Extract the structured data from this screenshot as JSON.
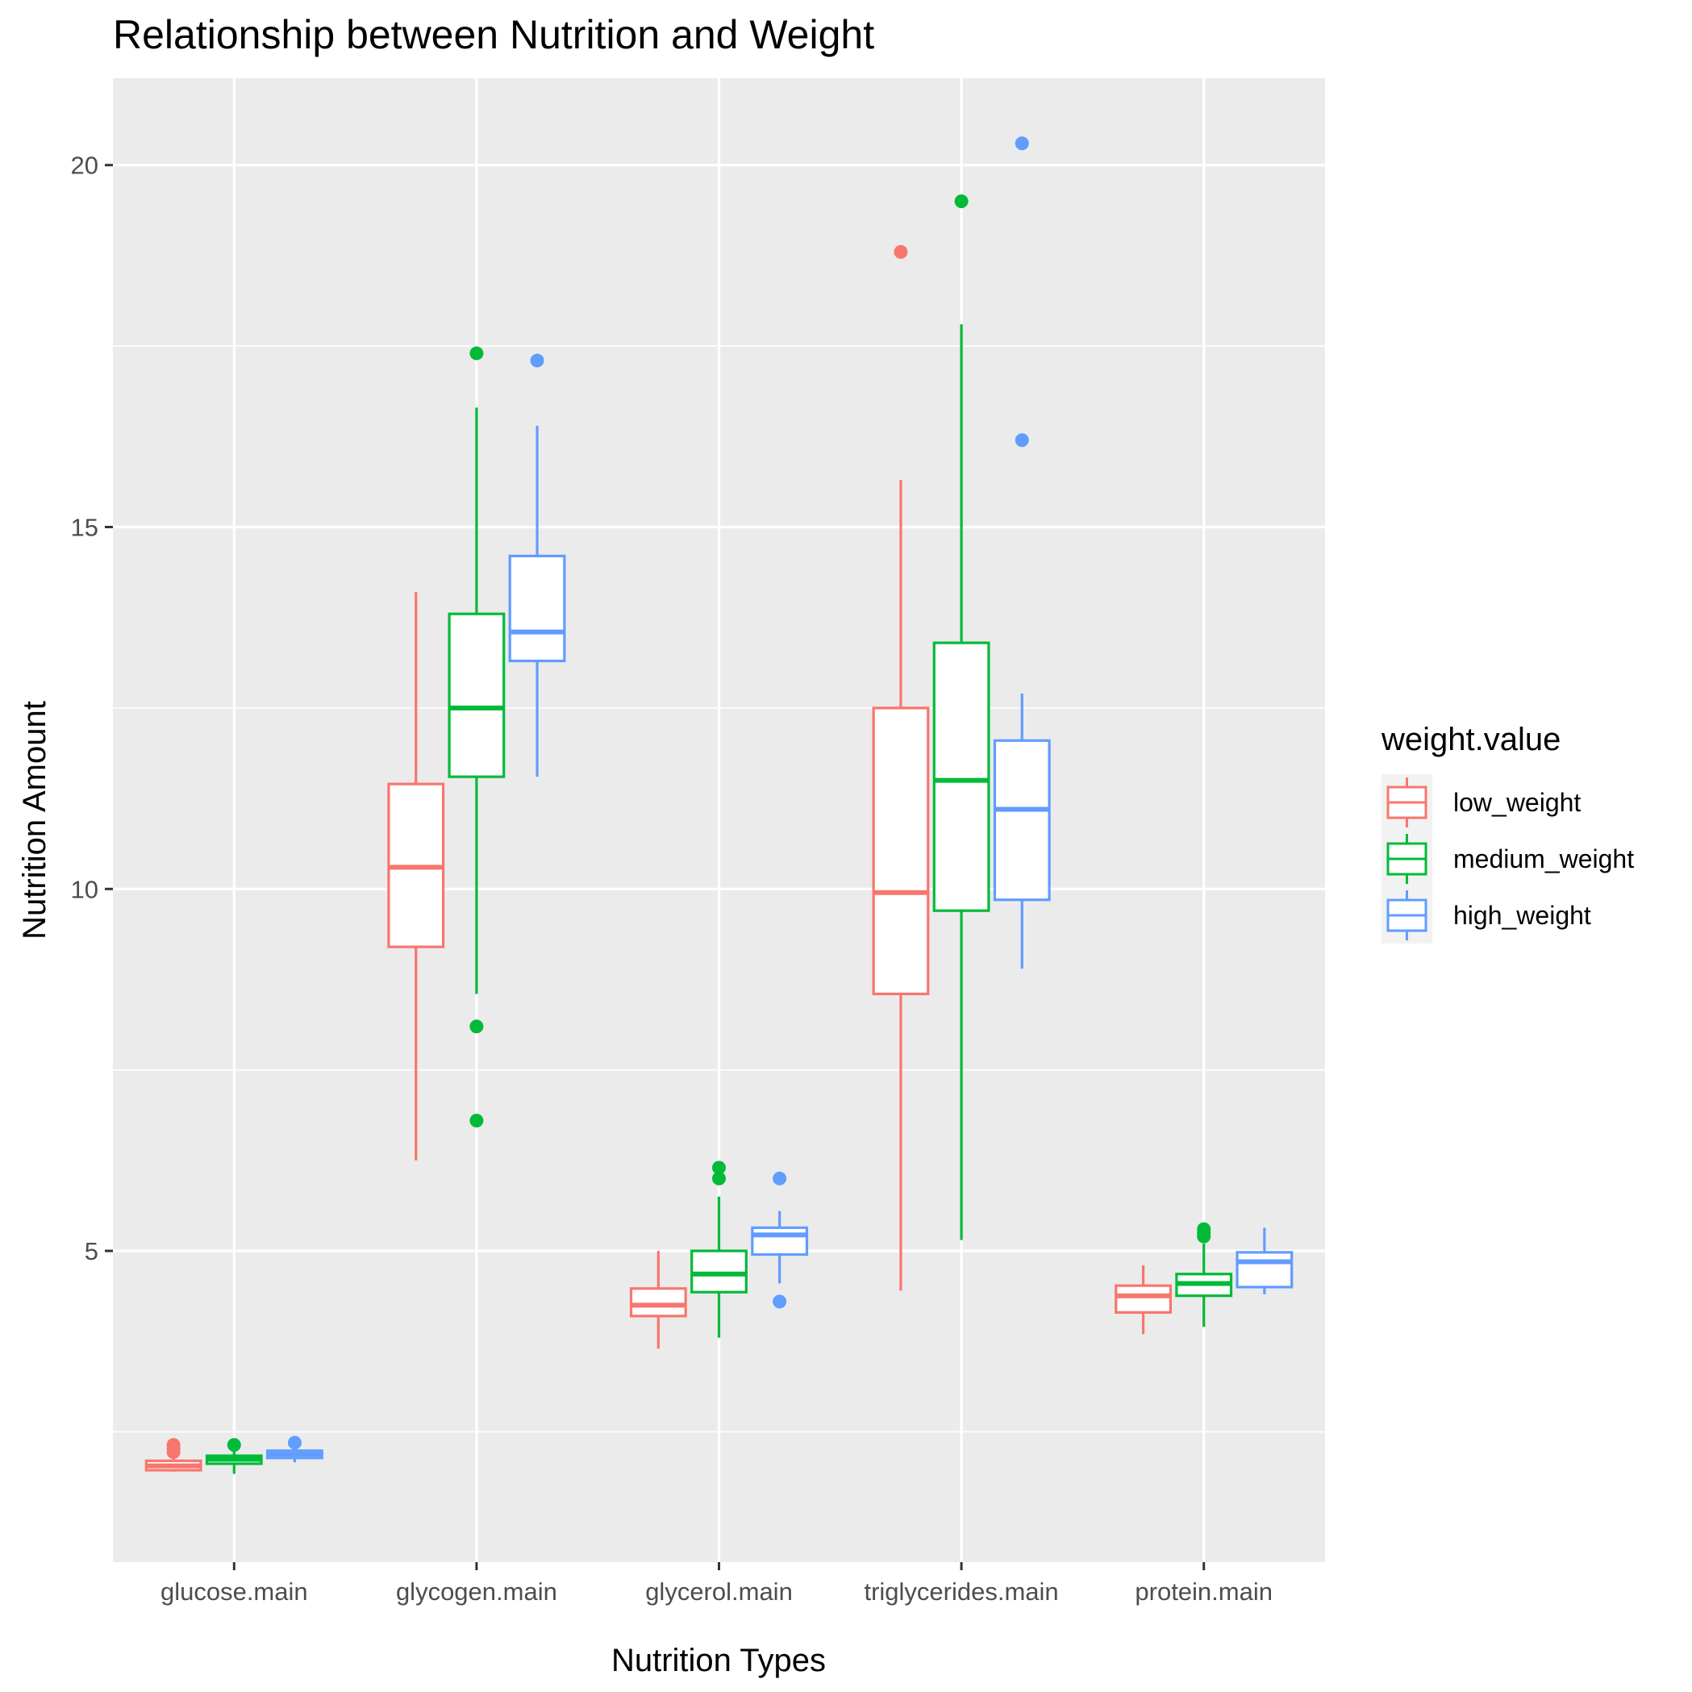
{
  "chart_data": {
    "type": "boxplot",
    "title": "Relationship between Nutrition and Weight",
    "xlabel": "Nutrition Types",
    "ylabel": "Nutrition Amount",
    "categories": [
      "glucose.main",
      "glycogen.main",
      "glycerol.main",
      "triglycerides.main",
      "protein.main"
    ],
    "y_ticks": [
      5,
      10,
      15,
      20
    ],
    "ylim": [
      0.7,
      21.2
    ],
    "grid": true,
    "legend": {
      "title": "weight.value",
      "position": "right"
    },
    "series": [
      {
        "name": "low_weight",
        "color": "#F8766D",
        "boxes": [
          {
            "whisker_low": 1.95,
            "q1": 1.97,
            "median": 2.03,
            "q3": 2.1,
            "whisker_high": 2.15,
            "outliers": [
              2.22,
              2.27,
              2.32
            ]
          },
          {
            "whisker_low": 6.25,
            "q1": 9.2,
            "median": 10.3,
            "q3": 11.45,
            "whisker_high": 14.1,
            "outliers": []
          },
          {
            "whisker_low": 3.65,
            "q1": 4.1,
            "median": 4.25,
            "q3": 4.48,
            "whisker_high": 5.0,
            "outliers": []
          },
          {
            "whisker_low": 4.45,
            "q1": 8.55,
            "median": 9.95,
            "q3": 12.5,
            "whisker_high": 15.65,
            "outliers": [
              18.8
            ]
          },
          {
            "whisker_low": 3.85,
            "q1": 4.15,
            "median": 4.38,
            "q3": 4.52,
            "whisker_high": 4.8,
            "outliers": []
          }
        ]
      },
      {
        "name": "medium_weight",
        "color": "#00BA38",
        "boxes": [
          {
            "whisker_low": 1.92,
            "q1": 2.06,
            "median": 2.12,
            "q3": 2.17,
            "whisker_high": 2.25,
            "outliers": [
              2.32
            ]
          },
          {
            "whisker_low": 8.55,
            "q1": 11.55,
            "median": 12.5,
            "q3": 13.8,
            "whisker_high": 16.65,
            "outliers": [
              17.4,
              8.1,
              6.8
            ]
          },
          {
            "whisker_low": 3.8,
            "q1": 4.43,
            "median": 4.68,
            "q3": 5.0,
            "whisker_high": 5.75,
            "outliers": [
              6.15,
              6.0
            ]
          },
          {
            "whisker_low": 5.15,
            "q1": 9.7,
            "median": 11.5,
            "q3": 13.4,
            "whisker_high": 17.8,
            "outliers": [
              19.5
            ]
          },
          {
            "whisker_low": 3.95,
            "q1": 4.38,
            "median": 4.55,
            "q3": 4.68,
            "whisker_high": 5.1,
            "outliers": [
              5.2,
              5.25,
              5.3
            ]
          }
        ]
      },
      {
        "name": "high_weight",
        "color": "#619CFF",
        "boxes": [
          {
            "whisker_low": 2.08,
            "q1": 2.14,
            "median": 2.19,
            "q3": 2.24,
            "whisker_high": 2.3,
            "outliers": [
              2.35
            ]
          },
          {
            "whisker_low": 11.55,
            "q1": 13.15,
            "median": 13.55,
            "q3": 14.6,
            "whisker_high": 16.4,
            "outliers": [
              17.3
            ]
          },
          {
            "whisker_low": 4.55,
            "q1": 4.95,
            "median": 5.22,
            "q3": 5.32,
            "whisker_high": 5.55,
            "outliers": [
              6.0,
              4.3
            ]
          },
          {
            "whisker_low": 8.9,
            "q1": 9.85,
            "median": 11.1,
            "q3": 12.05,
            "whisker_high": 12.7,
            "outliers": [
              20.3,
              16.2
            ]
          },
          {
            "whisker_low": 4.4,
            "q1": 4.5,
            "median": 4.85,
            "q3": 4.98,
            "whisker_high": 5.32,
            "outliers": []
          }
        ]
      }
    ]
  }
}
